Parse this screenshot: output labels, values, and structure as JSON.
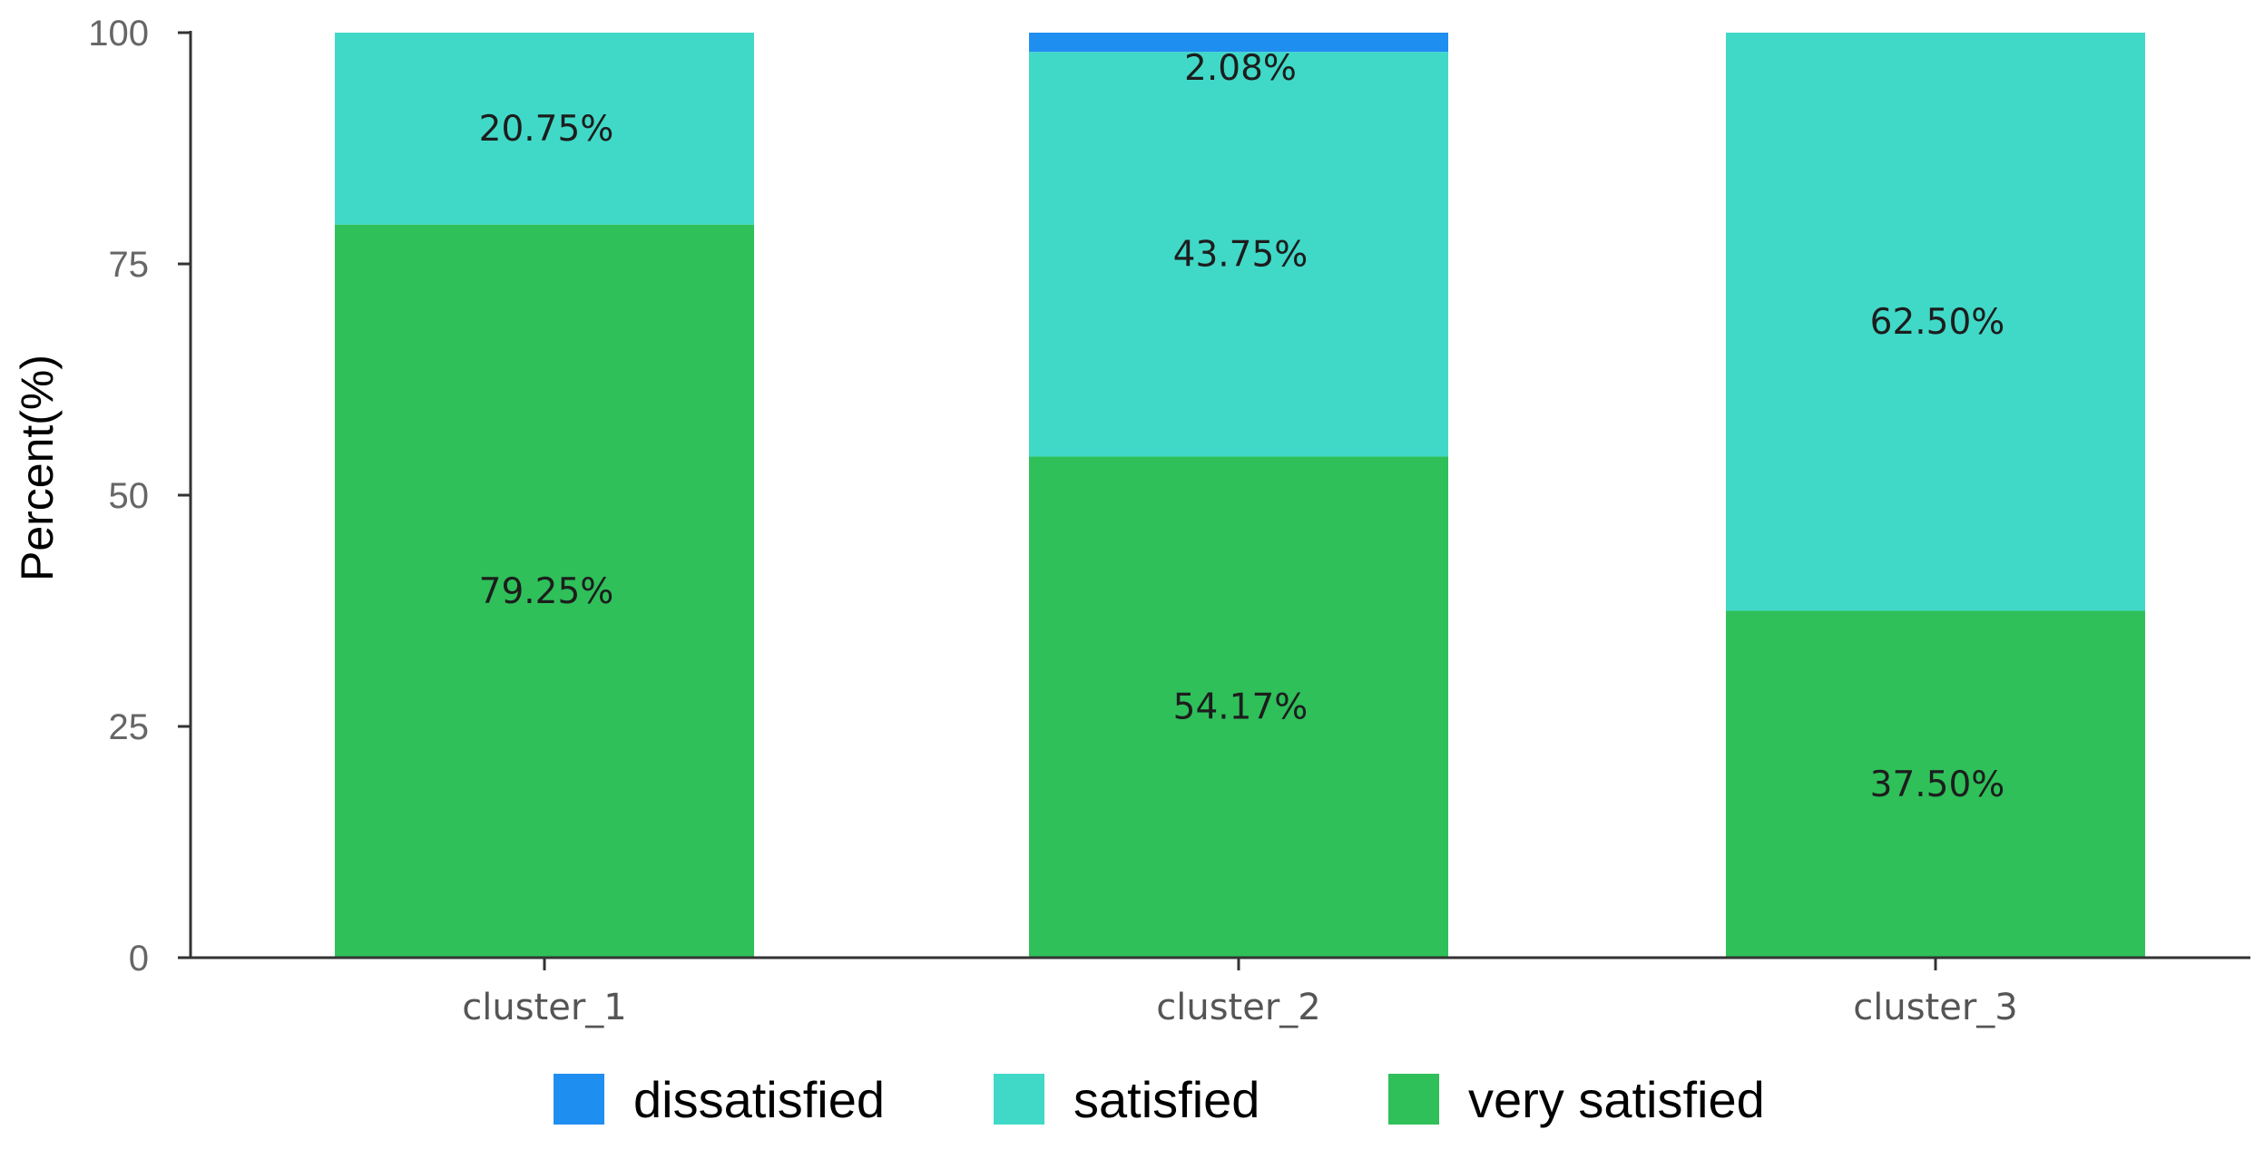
{
  "chart_data": {
    "type": "bar",
    "stacked": true,
    "title": "",
    "xlabel": "",
    "ylabel": "Percent(%)",
    "ylim": [
      0,
      100
    ],
    "yticks": [
      "0",
      "25",
      "50",
      "75",
      "100"
    ],
    "categories": [
      "cluster_1",
      "cluster_2",
      "cluster_3"
    ],
    "series": [
      {
        "name": "very satisfied",
        "color": "#2fc05a",
        "values": [
          79.25,
          54.17,
          37.5
        ],
        "labels": [
          "79.25%",
          "54.17%",
          "37.50%"
        ]
      },
      {
        "name": "satisfied",
        "color": "#40d9c8",
        "values": [
          20.75,
          43.75,
          62.5
        ],
        "labels": [
          "20.75%",
          "43.75%",
          "62.50%"
        ]
      },
      {
        "name": "dissatisfied",
        "color": "#1f8ef1",
        "values": [
          0,
          2.08,
          0
        ],
        "labels": [
          "",
          "2.08%",
          ""
        ]
      }
    ],
    "legend": {
      "placement": "bottom",
      "order": [
        "dissatisfied",
        "satisfied",
        "very satisfied"
      ]
    },
    "grid": false
  }
}
